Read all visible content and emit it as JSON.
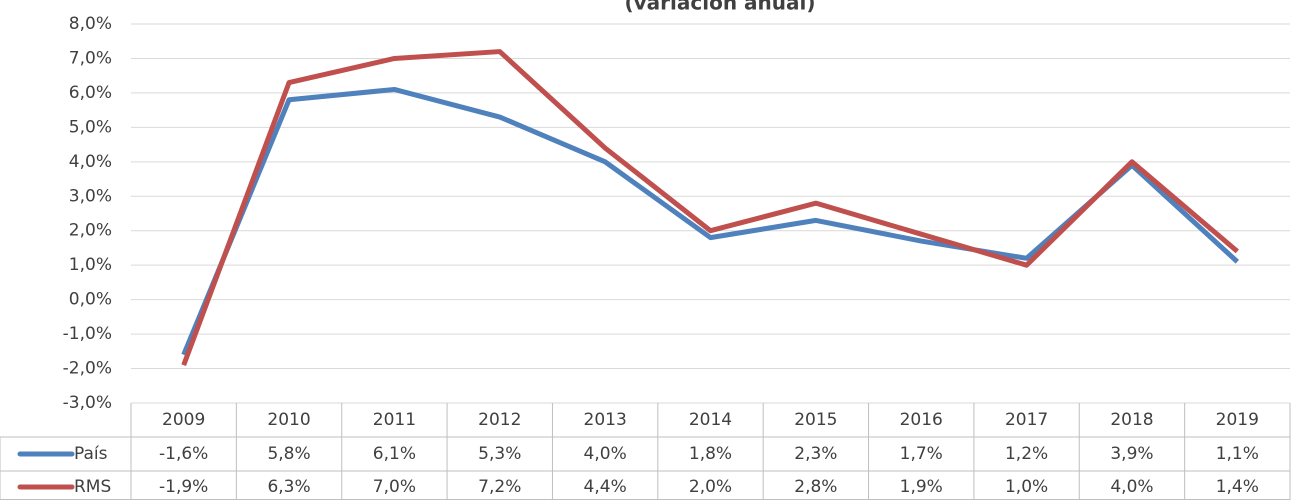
{
  "chart_data": {
    "type": "line",
    "title": "(variación anual)",
    "categories": [
      "2009",
      "2010",
      "2011",
      "2012",
      "2013",
      "2014",
      "2015",
      "2016",
      "2017",
      "2018",
      "2019"
    ],
    "series": [
      {
        "name": "País",
        "color": "#4f81bd",
        "values": [
          -1.6,
          5.8,
          6.1,
          5.3,
          4.0,
          1.8,
          2.3,
          1.7,
          1.2,
          3.9,
          1.1
        ],
        "value_labels": [
          "-1,6%",
          "5,8%",
          "6,1%",
          "5,3%",
          "4,0%",
          "1,8%",
          "2,3%",
          "1,7%",
          "1,2%",
          "3,9%",
          "1,1%"
        ]
      },
      {
        "name": "RMS",
        "color": "#c0504d",
        "values": [
          -1.9,
          6.3,
          7.0,
          7.2,
          4.4,
          2.0,
          2.8,
          1.9,
          1.0,
          4.0,
          1.4
        ],
        "value_labels": [
          "-1,9%",
          "6,3%",
          "7,0%",
          "7,2%",
          "4,4%",
          "2,0%",
          "2,8%",
          "1,9%",
          "1,0%",
          "4,0%",
          "1,4%"
        ]
      }
    ],
    "ylim": [
      -3,
      8
    ],
    "yticks": [
      {
        "value": -3,
        "label": "-3,0%"
      },
      {
        "value": -2,
        "label": "-2,0%"
      },
      {
        "value": -1,
        "label": "-1,0%"
      },
      {
        "value": 0,
        "label": "0,0%"
      },
      {
        "value": 1,
        "label": "1,0%"
      },
      {
        "value": 2,
        "label": "2,0%"
      },
      {
        "value": 3,
        "label": "3,0%"
      },
      {
        "value": 4,
        "label": "4,0%"
      },
      {
        "value": 5,
        "label": "5,0%"
      },
      {
        "value": 6,
        "label": "6,0%"
      },
      {
        "value": 7,
        "label": "7,0%"
      },
      {
        "value": 8,
        "label": "8,0%"
      }
    ],
    "grid": true
  }
}
